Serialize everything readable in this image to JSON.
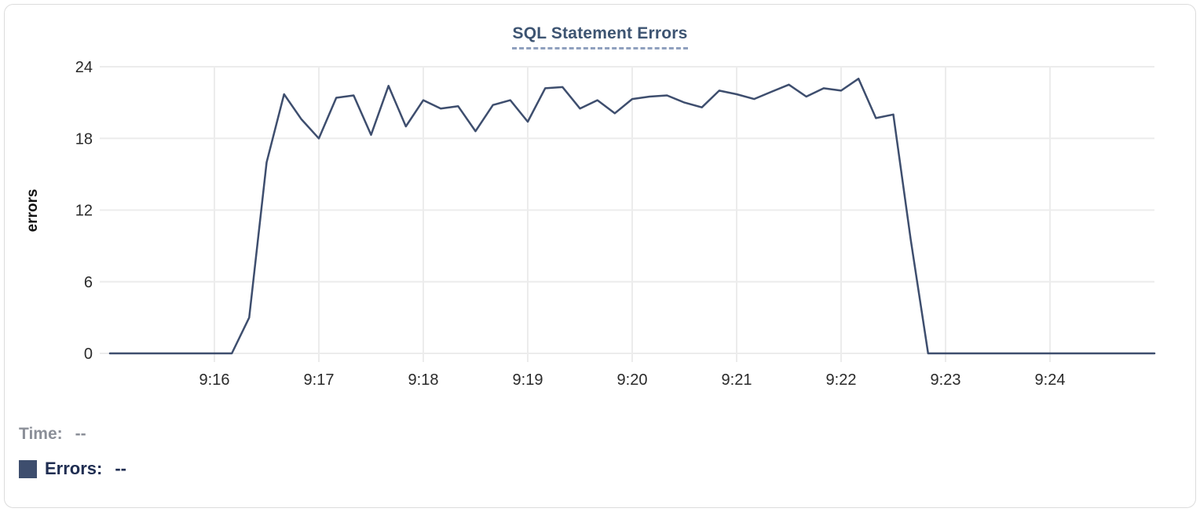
{
  "chart": {
    "title": "SQL Statement Errors",
    "y_axis_label": "errors",
    "legend": {
      "time_label": "Time:",
      "time_value": "--",
      "errors_label": "Errors:",
      "errors_value": "--"
    },
    "colors": {
      "line": "#3e4e6e",
      "swatch": "#3e4e6e",
      "title": "#3d5472",
      "title_dash": "#8fa0be",
      "grid": "#ececec",
      "axis_text": "#2a2a2a",
      "axis_title_text": "#111111",
      "legend_time_text": "#8b8f98",
      "legend_errors_text": "#202e52",
      "card_border": "#dcdcdc"
    }
  },
  "chart_data": {
    "type": "line",
    "title": "SQL Statement Errors",
    "xlabel": "",
    "ylabel": "errors",
    "ylim": [
      0,
      24
    ],
    "y_ticks": [
      0,
      6,
      12,
      18,
      24
    ],
    "x_ticks": [
      "9:16",
      "9:17",
      "9:18",
      "9:19",
      "9:20",
      "9:21",
      "9:22",
      "9:23",
      "9:24"
    ],
    "x_tick_minute_offsets": [
      1,
      2,
      3,
      4,
      5,
      6,
      7,
      8,
      9
    ],
    "x_total_minutes": 10,
    "x_start_time": "9:15:00",
    "x_end_time": "9:25:00",
    "interval_seconds": 10,
    "grid": true,
    "legend_position": "bottom-left",
    "series": [
      {
        "name": "Errors",
        "values": [
          0,
          0,
          0,
          0,
          0,
          0,
          0,
          0,
          3,
          16,
          21.7,
          19.6,
          18,
          21.4,
          21.6,
          18.3,
          22.4,
          19,
          21.2,
          20.5,
          20.7,
          18.6,
          20.8,
          21.2,
          19.4,
          22.2,
          22.3,
          20.5,
          21.2,
          20.1,
          21.3,
          21.5,
          21.6,
          21,
          20.6,
          22,
          21.7,
          21.3,
          21.9,
          22.5,
          21.5,
          22.2,
          22,
          23,
          19.7,
          20,
          9.5,
          0,
          0,
          0,
          0,
          0,
          0,
          0,
          0,
          0,
          0,
          0,
          0,
          0,
          0
        ]
      }
    ]
  }
}
